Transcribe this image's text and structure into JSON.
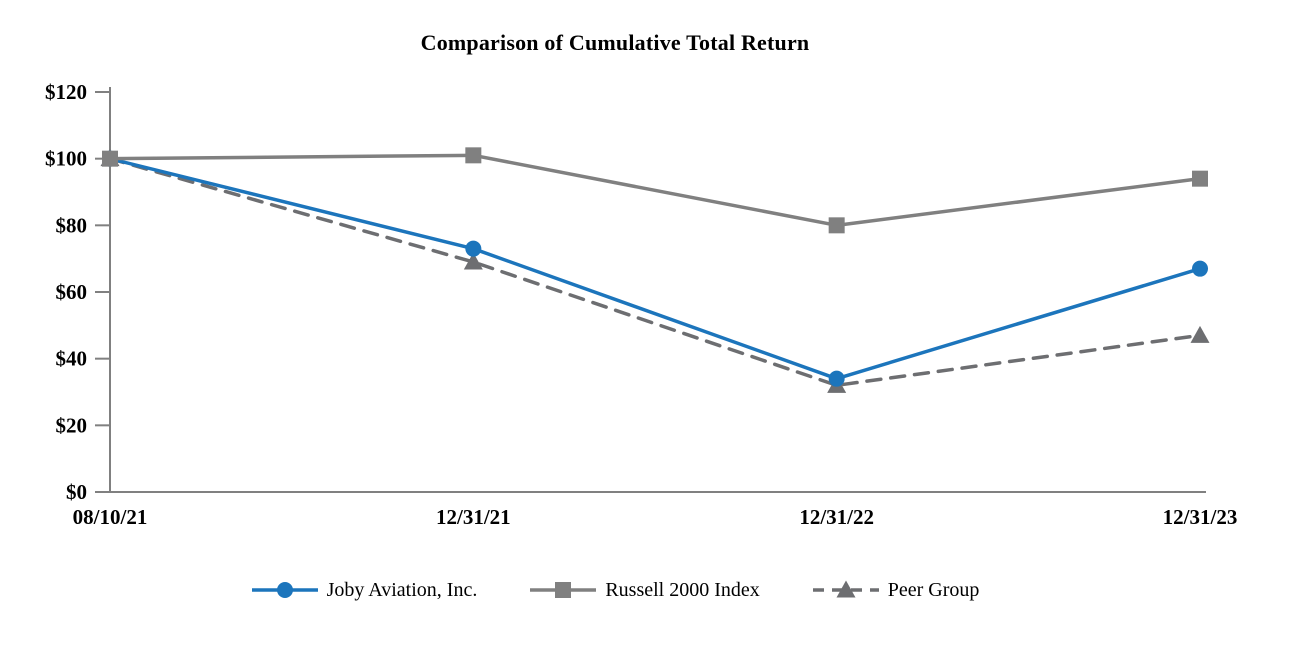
{
  "chart_data": {
    "type": "line",
    "title": "Comparison of Cumulative Total Return",
    "categories": [
      "08/10/21",
      "12/31/21",
      "12/31/22",
      "12/31/23"
    ],
    "series": [
      {
        "name": "Joby Aviation, Inc.",
        "values": [
          100,
          73,
          34,
          67
        ],
        "color": "#1C75BC",
        "marker": "circle",
        "dash": "solid"
      },
      {
        "name": "Russell 2000 Index",
        "values": [
          100,
          101,
          80,
          94
        ],
        "color": "#808080",
        "marker": "square",
        "dash": "solid"
      },
      {
        "name": "Peer Group",
        "values": [
          100,
          69,
          32,
          47
        ],
        "color": "#6D6E71",
        "marker": "triangle",
        "dash": "dashed"
      }
    ],
    "draw_order": [
      2,
      0,
      1
    ],
    "ylim": [
      0,
      120
    ],
    "ytick_step": 20,
    "ytick_labels": [
      "$0",
      "$20",
      "$40",
      "$60",
      "$80",
      "$100",
      "$120"
    ],
    "xlabel": "",
    "ylabel": "",
    "grid": false,
    "legend_position": "bottom",
    "axis_color": "#808080",
    "text_color": "#000000"
  }
}
